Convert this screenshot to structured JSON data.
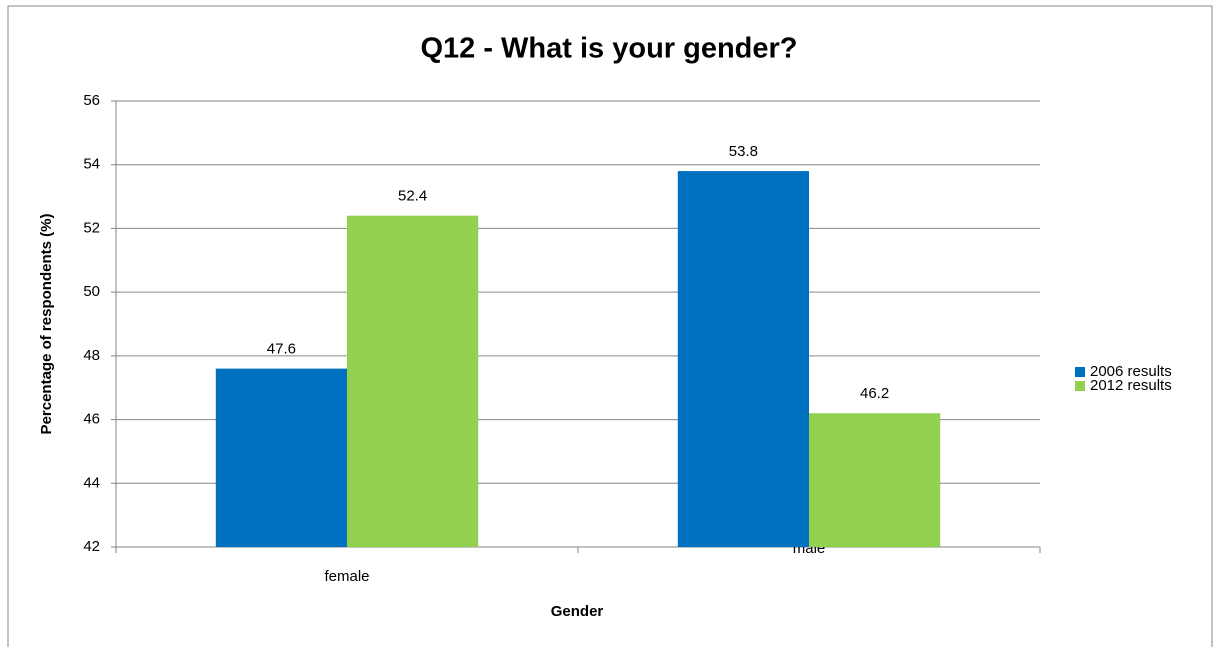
{
  "chart_data": {
    "type": "bar",
    "title": "Q12 -  What is your gender?",
    "x_label": "Gender",
    "y_label": "Percentage of respondents (%)",
    "categories": [
      "female",
      "male"
    ],
    "series": [
      {
        "name": "2006 results",
        "color": "#0070c0",
        "values": [
          47.6,
          53.8
        ]
      },
      {
        "name": "2012 results",
        "color": "#92d050",
        "values": [
          52.4,
          46.2
        ]
      }
    ],
    "ylim": [
      42,
      56
    ],
    "yticks": [
      42,
      44,
      46,
      48,
      50,
      52,
      54,
      56
    ],
    "grid": true,
    "legend": "right"
  }
}
